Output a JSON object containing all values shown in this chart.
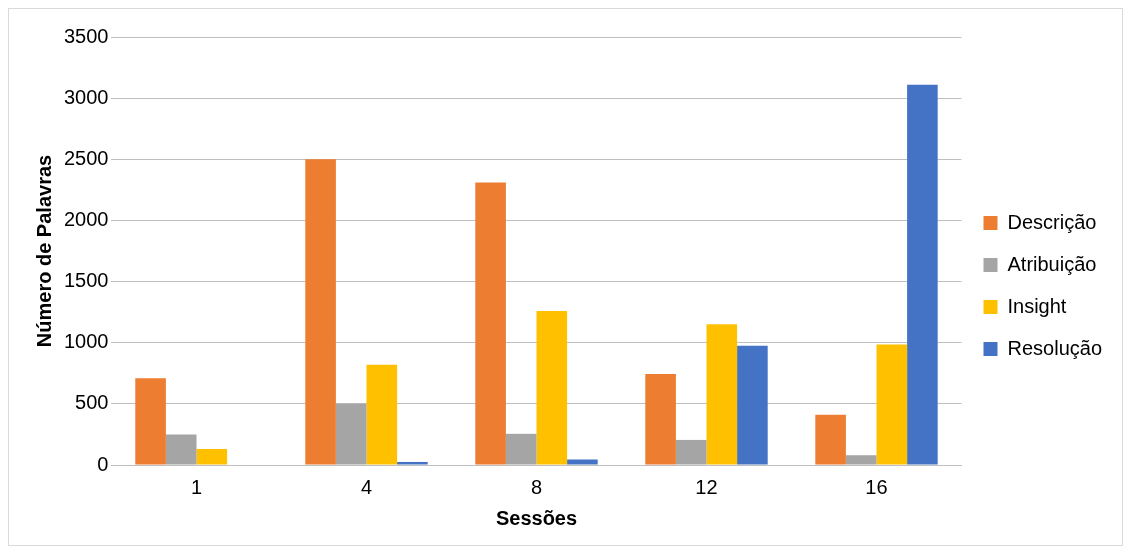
{
  "chart_data": {
    "type": "bar",
    "xlabel": "Sessões",
    "ylabel": "Número de Palavras",
    "categories": [
      "1",
      "4",
      "8",
      "12",
      "16"
    ],
    "series": [
      {
        "name": "Descrição",
        "color": "#ed7d31",
        "values": [
          710,
          2500,
          2310,
          745,
          410
        ]
      },
      {
        "name": "Atribuição",
        "color": "#a5a5a5",
        "values": [
          250,
          500,
          255,
          205,
          80
        ]
      },
      {
        "name": "Insight",
        "color": "#ffc000",
        "values": [
          130,
          820,
          1260,
          1150,
          985
        ]
      },
      {
        "name": "Resolução",
        "color": "#4472c4",
        "values": [
          0,
          25,
          45,
          975,
          3110
        ]
      }
    ],
    "ylim": [
      0,
      3500
    ],
    "yticks": [
      0,
      500,
      1000,
      1500,
      2000,
      2500,
      3000,
      3500
    ],
    "grid": "y",
    "legend": "right"
  }
}
